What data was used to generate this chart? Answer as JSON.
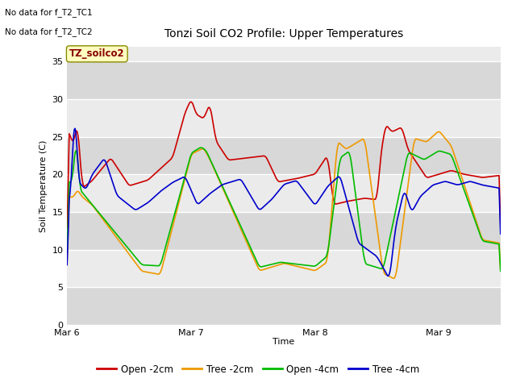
{
  "title": "Tonzi Soil CO2 Profile: Upper Temperatures",
  "ylabel": "Soil Temperature (C)",
  "xlabel": "Time",
  "top_note1": "No data for f_T2_TC1",
  "top_note2": "No data for f_T2_TC2",
  "legend_label_box": "TZ_soilco2",
  "ylim": [
    0,
    37
  ],
  "yticks": [
    0,
    5,
    10,
    15,
    20,
    25,
    30,
    35
  ],
  "xtick_labels": [
    "Mar 6",
    "Mar 7",
    "Mar 8",
    "Mar 9"
  ],
  "colors": {
    "open_2cm": "#cc0000",
    "tree_2cm": "#ee9900",
    "open_4cm": "#00bb00",
    "tree_4cm": "#0000cc"
  },
  "legend_labels": [
    "Open -2cm",
    "Tree -2cm",
    "Open -4cm",
    "Tree -4cm"
  ],
  "bg_light": "#ebebeb",
  "bg_dark": "#d8d8d8",
  "grid_color": "white"
}
